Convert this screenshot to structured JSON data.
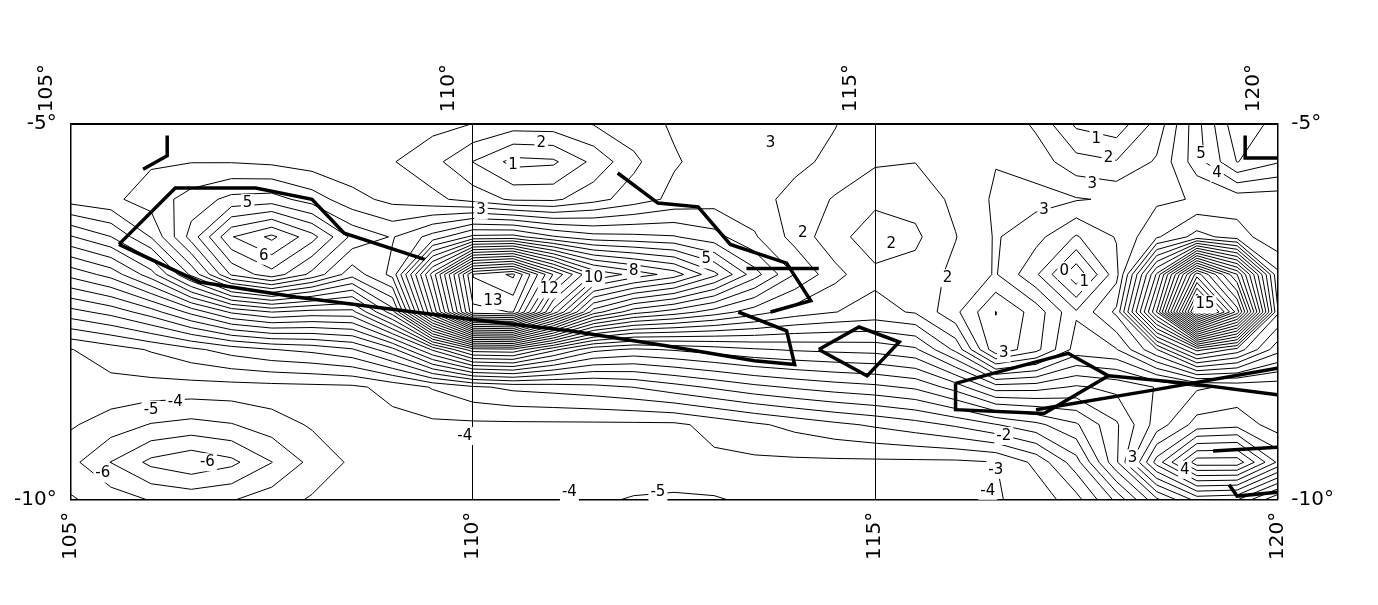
{
  "chart_data": {
    "type": "contour",
    "color": "#000000",
    "grid": true,
    "xlim": [
      105,
      120
    ],
    "ylim": [
      -10,
      -5
    ],
    "xticks": [
      {
        "value": 105,
        "label": "105°"
      },
      {
        "value": 110,
        "label": "110°"
      },
      {
        "value": 115,
        "label": "115°"
      },
      {
        "value": 120,
        "label": "120°"
      }
    ],
    "yticks": [
      {
        "value": -10,
        "label": "-10°"
      },
      {
        "value": -5,
        "label": "-5°"
      }
    ],
    "x": [
      105,
      105.5,
      106,
      106.5,
      107,
      107.5,
      108,
      108.5,
      109,
      109.5,
      110,
      110.5,
      111,
      111.5,
      112,
      112.5,
      113,
      113.5,
      114,
      114.5,
      115,
      115.5,
      116,
      116.5,
      117,
      117.5,
      118,
      118.5,
      119,
      119.5,
      120
    ],
    "y": [
      -5,
      -5.5,
      -6,
      -6.5,
      -7,
      -7.5,
      -8,
      -8.5,
      -9,
      -9.5,
      -10
    ],
    "z": [
      [
        2.7,
        2.8,
        2.9,
        2.9,
        2.8,
        2.7,
        2.6,
        2.59,
        2.65,
        2.65,
        2.49,
        2.25,
        2.27,
        2.52,
        2.78,
        3.06,
        3.2,
        3.3,
        3.2,
        3.02,
        2.7,
        2.6,
        2.8,
        2.92,
        2.41,
        1.41,
        1.2,
        2.17,
        3.83,
        5.37,
        4.82
      ],
      [
        2.7,
        2.8,
        2.94,
        2.98,
        2.97,
        2.89,
        2.74,
        2.63,
        2.53,
        2.18,
        1.49,
        0.84,
        0.91,
        1.63,
        2.39,
        2.95,
        3.2,
        3.3,
        3.12,
        2.88,
        2.57,
        2.51,
        2.8,
        2.98,
        2.77,
        2.18,
        2.03,
        2.57,
        3.77,
        5.02,
        4.55
      ],
      [
        2.72,
        2.89,
        3.23,
        3.71,
        4.15,
        4.22,
        3.76,
        3.18,
        2.85,
        2.63,
        2.3,
        1.91,
        1.9,
        2.32,
        2.74,
        3.13,
        3.27,
        3.18,
        2.84,
        2.45,
        2.11,
        2.18,
        2.62,
        3.08,
        3.17,
        3.04,
        2.93,
        2.9,
        3.04,
        3.2,
        3.2
      ],
      [
        0.95,
        1.49,
        2.53,
        4.21,
        5.97,
        6.62,
        5.69,
        4.37,
        3.96,
        4.7,
        5.63,
        5.69,
        5.06,
        4.69,
        4.63,
        4.54,
        4.19,
        3.56,
        2.82,
        2.17,
        1.73,
        1.9,
        2.48,
        3.05,
        2.67,
        1.95,
        2.54,
        3.43,
        4.19,
        3.76,
        3.09
      ],
      [
        -0.84,
        -0.31,
        0.78,
        2.62,
        4.58,
        5.31,
        4.36,
        3.2,
        4.15,
        8.22,
        12.55,
        13.1,
        10.47,
        8.43,
        7.82,
        7.27,
        6.14,
        4.72,
        3.49,
        2.66,
        2.11,
        2.18,
        2.64,
        3.04,
        2.08,
        0.62,
        2.32,
        6.58,
        11.79,
        9.01,
        4.14
      ],
      [
        -2.68,
        -2.32,
        -1.73,
        -0.84,
        0.09,
        0.51,
        0.31,
        0.33,
        2.28,
        7.08,
        11.85,
        12.02,
        8.31,
        5.24,
        4.2,
        3.77,
        3.27,
        2.74,
        2.26,
        2.01,
        1.85,
        2.05,
        2.88,
        4.01,
        3.28,
        2.06,
        3.11,
        8.02,
        15.08,
        11.28,
        4.6
      ],
      [
        -4.52,
        -4.24,
        -3.95,
        -3.62,
        -3.28,
        -3.02,
        -2.86,
        -2.56,
        -1.66,
        0.08,
        1.79,
        1.87,
        0.64,
        -0.35,
        -0.59,
        -0.45,
        -0.26,
        -0.06,
        0.06,
        0.13,
        0.18,
        0.41,
        1.63,
        3.89,
        3.16,
        1.79,
        1.97,
        3.47,
        5.67,
        4.81,
        3.2
      ],
      [
        -4.63,
        -4.66,
        -4.69,
        -4.7,
        -4.69,
        -4.66,
        -4.63,
        -4.6,
        -4.34,
        -3.96,
        -3.6,
        -3.38,
        -3.29,
        -3.17,
        -2.99,
        -2.7,
        -2.42,
        -2.14,
        -1.93,
        -1.75,
        -1.62,
        -1.41,
        -0.78,
        0.26,
        0.21,
        -0.07,
        0.14,
        0.53,
        0.93,
        1.1,
        1.18
      ],
      [
        -4.94,
        -5.24,
        -5.53,
        -5.65,
        -5.53,
        -5.24,
        -4.94,
        -4.74,
        -4.65,
        -4.6,
        -4.6,
        -4.6,
        -4.6,
        -4.6,
        -4.6,
        -4.6,
        -4.35,
        -4.09,
        -3.85,
        -3.62,
        -3.42,
        -3.2,
        -2.92,
        -2.53,
        -2.14,
        -1.57,
        -0.57,
        0.72,
        1.7,
        1.84,
        1.24
      ],
      [
        -5.35,
        -6.01,
        -6.63,
        -6.9,
        -6.63,
        -6.01,
        -5.35,
        -4.91,
        -4.7,
        -4.6,
        -4.6,
        -4.6,
        -4.6,
        -4.6,
        -4.6,
        -4.6,
        -4.6,
        -4.6,
        -4.6,
        -4.6,
        -4.6,
        -4.6,
        -4.6,
        -4.51,
        -3.87,
        -2.71,
        -0.58,
        2.21,
        4.29,
        4.3,
        2.43
      ],
      [
        -4.94,
        -5.24,
        -5.53,
        -5.65,
        -5.53,
        -5.24,
        -4.94,
        -4.74,
        -4.65,
        -4.6,
        -4.6,
        -4.6,
        -4.75,
        -4.9,
        -5.05,
        -5.1,
        -5.05,
        -4.9,
        -4.75,
        -4.6,
        -4.6,
        -4.6,
        -4.6,
        -4.54,
        -4.33,
        -3.69,
        -2.38,
        -0.62,
        0.66,
        0.52,
        -0.97
      ]
    ],
    "levels": [
      -6.5,
      -6,
      -5.5,
      -5,
      -4.5,
      -4,
      -3.5,
      -3,
      -2.5,
      -2,
      -1.5,
      -1,
      -0.5,
      0,
      0.5,
      1,
      1.5,
      2,
      2.5,
      3,
      3.5,
      4,
      4.5,
      5,
      5.5,
      6,
      6.5,
      7,
      7.5,
      8,
      8.5,
      9,
      9.5,
      10,
      10.5,
      11,
      11.5,
      12,
      12.5,
      13,
      13.5,
      14,
      14.5,
      15
    ],
    "coastline": [
      [
        [
          105.9,
          -5.6
        ],
        [
          106.2,
          -5.42
        ],
        [
          106.2,
          -5.15
        ]
      ],
      [
        [
          105.6,
          -6.6
        ],
        [
          106.3,
          -5.85
        ],
        [
          107.3,
          -5.85
        ],
        [
          108.0,
          -6.0
        ],
        [
          108.4,
          -6.45
        ],
        [
          109.4,
          -6.8
        ]
      ],
      [
        [
          105.6,
          -6.6
        ],
        [
          106.6,
          -7.1
        ],
        [
          107.8,
          -7.3
        ],
        [
          108.9,
          -7.45
        ],
        [
          110.0,
          -7.6
        ],
        [
          111.2,
          -7.75
        ],
        [
          112.4,
          -7.95
        ],
        [
          113.5,
          -8.15
        ],
        [
          114.0,
          -8.2
        ],
        [
          113.9,
          -7.75
        ],
        [
          113.3,
          -7.5
        ]
      ],
      [
        [
          111.8,
          -5.65
        ],
        [
          112.3,
          -6.05
        ],
        [
          112.8,
          -6.1
        ],
        [
          113.2,
          -6.6
        ],
        [
          113.9,
          -6.85
        ],
        [
          114.2,
          -7.35
        ],
        [
          113.7,
          -7.5
        ]
      ],
      [
        [
          113.4,
          -6.92
        ],
        [
          114.3,
          -6.92
        ]
      ],
      [
        [
          114.3,
          -8.0
        ],
        [
          114.8,
          -7.7
        ],
        [
          115.3,
          -7.9
        ],
        [
          114.9,
          -8.35
        ],
        [
          114.3,
          -8.0
        ]
      ],
      [
        [
          116.0,
          -8.45
        ],
        [
          117.4,
          -8.05
        ],
        [
          117.9,
          -8.35
        ],
        [
          117.1,
          -8.85
        ],
        [
          116.0,
          -8.8
        ],
        [
          116.0,
          -8.45
        ]
      ],
      [
        [
          117.9,
          -8.35
        ],
        [
          118.9,
          -8.45
        ],
        [
          120.0,
          -8.6
        ]
      ],
      [
        [
          117.0,
          -8.8
        ],
        [
          118.4,
          -8.55
        ],
        [
          120.0,
          -8.25
        ]
      ],
      [
        [
          119.2,
          -9.35
        ],
        [
          120.0,
          -9.3
        ]
      ],
      [
        [
          119.4,
          -9.8
        ],
        [
          119.5,
          -9.95
        ],
        [
          120.0,
          -9.9
        ]
      ],
      [
        [
          119.6,
          -5.15
        ],
        [
          119.6,
          -5.45
        ],
        [
          120.0,
          -5.45
        ]
      ]
    ],
    "contour_labels": [
      {
        "value": 2,
        "x": 110.85,
        "y": -5.25
      },
      {
        "value": 1,
        "x": 110.5,
        "y": -5.55
      },
      {
        "value": 3,
        "x": 113.7,
        "y": -5.25
      },
      {
        "value": 3,
        "x": 110.1,
        "y": -6.15
      },
      {
        "value": 5,
        "x": 107.2,
        "y": -6.05
      },
      {
        "value": 6,
        "x": 107.4,
        "y": -6.75
      },
      {
        "value": 13,
        "x": 110.25,
        "y": -7.35
      },
      {
        "value": 12,
        "x": 110.95,
        "y": -7.2
      },
      {
        "value": 10,
        "x": 111.5,
        "y": -7.05
      },
      {
        "value": 8,
        "x": 112.0,
        "y": -6.95
      },
      {
        "value": 5,
        "x": 112.9,
        "y": -6.8
      },
      {
        "value": 2,
        "x": 114.1,
        "y": -6.45
      },
      {
        "value": 2,
        "x": 115.2,
        "y": -6.6
      },
      {
        "value": 2,
        "x": 115.9,
        "y": -7.05
      },
      {
        "value": 1,
        "x": 117.75,
        "y": -5.2
      },
      {
        "value": 2,
        "x": 117.9,
        "y": -5.45
      },
      {
        "value": 3,
        "x": 117.7,
        "y": -5.8
      },
      {
        "value": 3,
        "x": 117.1,
        "y": -6.15
      },
      {
        "value": 5,
        "x": 119.05,
        "y": -5.4
      },
      {
        "value": 4,
        "x": 119.25,
        "y": -5.65
      },
      {
        "value": 15,
        "x": 119.1,
        "y": -7.4
      },
      {
        "value": 0,
        "x": 117.35,
        "y": -6.95
      },
      {
        "value": 1,
        "x": 117.6,
        "y": -7.1
      },
      {
        "value": 3,
        "x": 116.6,
        "y": -8.05
      },
      {
        "value": -5,
        "x": 106.0,
        "y": -8.8
      },
      {
        "value": -4,
        "x": 106.3,
        "y": -8.7
      },
      {
        "value": -6,
        "x": 106.7,
        "y": -9.5
      },
      {
        "value": -6,
        "x": 105.4,
        "y": -9.65
      },
      {
        "value": -4,
        "x": 109.9,
        "y": -9.15
      },
      {
        "value": -4,
        "x": 111.2,
        "y": -9.9
      },
      {
        "value": -5,
        "x": 112.3,
        "y": -9.9
      },
      {
        "value": -2,
        "x": 116.6,
        "y": -9.15
      },
      {
        "value": -3,
        "x": 116.5,
        "y": -9.6
      },
      {
        "value": -4,
        "x": 116.4,
        "y": -9.88
      },
      {
        "value": 3,
        "x": 118.2,
        "y": -9.45
      },
      {
        "value": 4,
        "x": 118.85,
        "y": -9.6
      }
    ]
  }
}
